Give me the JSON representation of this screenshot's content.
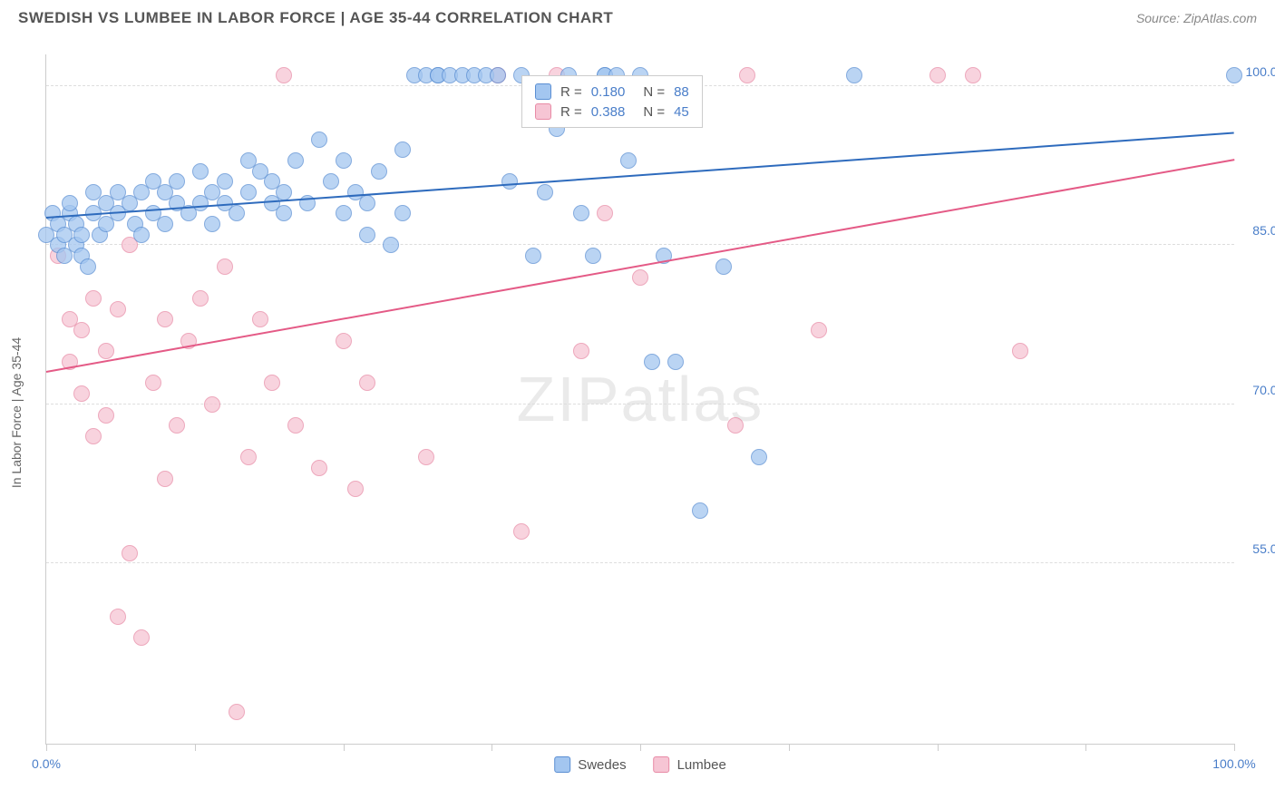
{
  "title": "SWEDISH VS LUMBEE IN LABOR FORCE | AGE 35-44 CORRELATION CHART",
  "source": "Source: ZipAtlas.com",
  "ylabel": "In Labor Force | Age 35-44",
  "watermark": "ZIPatlas",
  "chart": {
    "type": "scatter",
    "xlim": [
      0,
      100
    ],
    "ylim": [
      38,
      103
    ],
    "xtick_labels": {
      "0": "0.0%",
      "100": "100.0%"
    },
    "xtick_positions": [
      0,
      12.5,
      25,
      37.5,
      50,
      62.5,
      75,
      87.5,
      100
    ],
    "ytick_labels": {
      "55": "55.0%",
      "70": "70.0%",
      "85": "85.0%",
      "100": "100.0%"
    },
    "grid_y": [
      55,
      70,
      85,
      100
    ],
    "background": "#ffffff",
    "grid_color": "#dddddd",
    "axis_color": "#cccccc",
    "tick_label_color": "#4a7ec9",
    "marker_size": 16,
    "series": [
      {
        "name": "Swedes",
        "fill": "#a3c6f0",
        "stroke": "#5b8fd3",
        "trend_color": "#2e6bbd",
        "R": "0.180",
        "N": "88",
        "trend": {
          "y_at_x0": 87.5,
          "y_at_x100": 95.5
        },
        "points": [
          [
            0,
            86
          ],
          [
            0.5,
            88
          ],
          [
            1,
            87
          ],
          [
            1,
            85
          ],
          [
            1.5,
            84
          ],
          [
            1.5,
            86
          ],
          [
            2,
            88
          ],
          [
            2,
            89
          ],
          [
            2.5,
            85
          ],
          [
            2.5,
            87
          ],
          [
            3,
            86
          ],
          [
            3,
            84
          ],
          [
            3.5,
            83
          ],
          [
            4,
            88
          ],
          [
            4,
            90
          ],
          [
            4.5,
            86
          ],
          [
            5,
            89
          ],
          [
            5,
            87
          ],
          [
            6,
            90
          ],
          [
            6,
            88
          ],
          [
            7,
            89
          ],
          [
            7.5,
            87
          ],
          [
            8,
            90
          ],
          [
            8,
            86
          ],
          [
            9,
            91
          ],
          [
            9,
            88
          ],
          [
            10,
            90
          ],
          [
            10,
            87
          ],
          [
            11,
            89
          ],
          [
            11,
            91
          ],
          [
            12,
            88
          ],
          [
            13,
            92
          ],
          [
            13,
            89
          ],
          [
            14,
            90
          ],
          [
            14,
            87
          ],
          [
            15,
            89
          ],
          [
            15,
            91
          ],
          [
            16,
            88
          ],
          [
            17,
            90
          ],
          [
            17,
            93
          ],
          [
            18,
            92
          ],
          [
            19,
            89
          ],
          [
            19,
            91
          ],
          [
            20,
            90
          ],
          [
            20,
            88
          ],
          [
            21,
            93
          ],
          [
            22,
            89
          ],
          [
            23,
            95
          ],
          [
            24,
            91
          ],
          [
            25,
            88
          ],
          [
            25,
            93
          ],
          [
            26,
            90
          ],
          [
            27,
            86
          ],
          [
            27,
            89
          ],
          [
            28,
            92
          ],
          [
            29,
            85
          ],
          [
            30,
            94
          ],
          [
            30,
            88
          ],
          [
            31,
            101
          ],
          [
            32,
            101
          ],
          [
            33,
            101
          ],
          [
            33,
            101
          ],
          [
            34,
            101
          ],
          [
            35,
            101
          ],
          [
            36,
            101
          ],
          [
            37,
            101
          ],
          [
            38,
            101
          ],
          [
            39,
            91
          ],
          [
            40,
            101
          ],
          [
            41,
            84
          ],
          [
            42,
            90
          ],
          [
            43,
            96
          ],
          [
            44,
            101
          ],
          [
            45,
            88
          ],
          [
            46,
            84
          ],
          [
            47,
            101
          ],
          [
            47,
            101
          ],
          [
            48,
            101
          ],
          [
            49,
            93
          ],
          [
            50,
            101
          ],
          [
            51,
            74
          ],
          [
            52,
            84
          ],
          [
            53,
            74
          ],
          [
            55,
            60
          ],
          [
            57,
            83
          ],
          [
            60,
            65
          ],
          [
            68,
            101
          ],
          [
            100,
            101
          ]
        ]
      },
      {
        "name": "Lumbee",
        "fill": "#f6c5d4",
        "stroke": "#e88ba6",
        "trend_color": "#e45a86",
        "R": "0.388",
        "N": "45",
        "trend": {
          "y_at_x0": 73,
          "y_at_x100": 93
        },
        "points": [
          [
            1,
            84
          ],
          [
            2,
            78
          ],
          [
            2,
            74
          ],
          [
            3,
            77
          ],
          [
            3,
            71
          ],
          [
            4,
            80
          ],
          [
            4,
            67
          ],
          [
            5,
            75
          ],
          [
            5,
            69
          ],
          [
            6,
            79
          ],
          [
            6,
            50
          ],
          [
            7,
            85
          ],
          [
            7,
            56
          ],
          [
            8,
            48
          ],
          [
            9,
            72
          ],
          [
            10,
            78
          ],
          [
            10,
            63
          ],
          [
            11,
            68
          ],
          [
            12,
            76
          ],
          [
            13,
            80
          ],
          [
            14,
            70
          ],
          [
            15,
            83
          ],
          [
            16,
            41
          ],
          [
            17,
            65
          ],
          [
            18,
            78
          ],
          [
            19,
            72
          ],
          [
            20,
            101
          ],
          [
            21,
            68
          ],
          [
            23,
            64
          ],
          [
            25,
            76
          ],
          [
            26,
            62
          ],
          [
            27,
            72
          ],
          [
            32,
            65
          ],
          [
            38,
            101
          ],
          [
            40,
            58
          ],
          [
            43,
            101
          ],
          [
            45,
            75
          ],
          [
            47,
            88
          ],
          [
            50,
            82
          ],
          [
            58,
            68
          ],
          [
            59,
            101
          ],
          [
            65,
            77
          ],
          [
            75,
            101
          ],
          [
            78,
            101
          ],
          [
            82,
            75
          ]
        ]
      }
    ]
  },
  "stats_box": {
    "swatch1_label": "R =",
    "swatch2_label": "N ="
  }
}
